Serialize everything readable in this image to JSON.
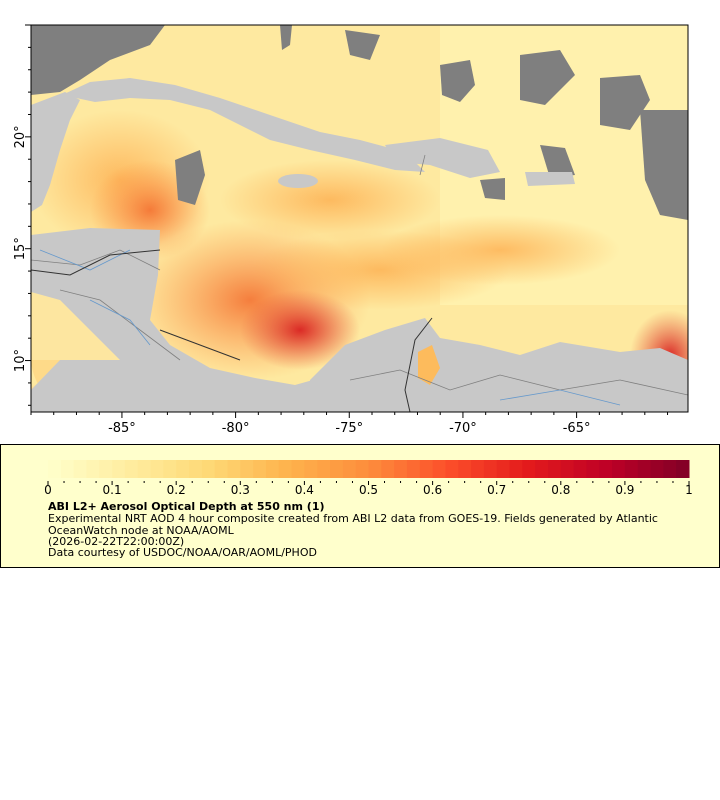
{
  "map": {
    "projection": "lon-lat",
    "lon_range": [
      -89.0,
      -60.1
    ],
    "lat_range": [
      7.7,
      25.0
    ],
    "x_ticks": [
      {
        "value": -85,
        "label": "-85°"
      },
      {
        "value": -80,
        "label": "-80°"
      },
      {
        "value": -75,
        "label": "-75°"
      },
      {
        "value": -70,
        "label": "-70°"
      },
      {
        "value": -65,
        "label": "-65°"
      }
    ],
    "y_ticks": [
      {
        "value": 20,
        "label": "20°"
      },
      {
        "value": 15,
        "label": "15°"
      },
      {
        "value": 10,
        "label": "10°"
      }
    ],
    "colors": {
      "land": "#c8c8c8",
      "no_data": "#7f7f7f",
      "borders": "#808080",
      "rivers": "#6699cc",
      "national_borders": "#333333"
    }
  },
  "legend": {
    "background": "#ffffcc",
    "colorbar": {
      "min": 0,
      "max": 1,
      "palette": [
        "#ffffcc",
        "#ffeda0",
        "#fed976",
        "#feb24c",
        "#fd8d3c",
        "#fc4e2a",
        "#e31a1c",
        "#bd0026",
        "#800026"
      ],
      "tick_labels": [
        "0",
        "0.1",
        "0.2",
        "0.3",
        "0.4",
        "0.5",
        "0.6",
        "0.7",
        "0.8",
        "0.9",
        "1"
      ]
    },
    "title": "ABI L2+ Aerosol Optical Depth at 550 nm (1)",
    "description": "Experimental NRT AOD 4 hour composite created from ABI L2 data from GOES-19. Fields generated by Atlantic OceanWatch node at NOAA/AOML",
    "time": "(2026-02-22T22:00:00Z)",
    "credit": "Data courtesy of USDOC/NOAA/OAR/AOML/PHOD"
  }
}
